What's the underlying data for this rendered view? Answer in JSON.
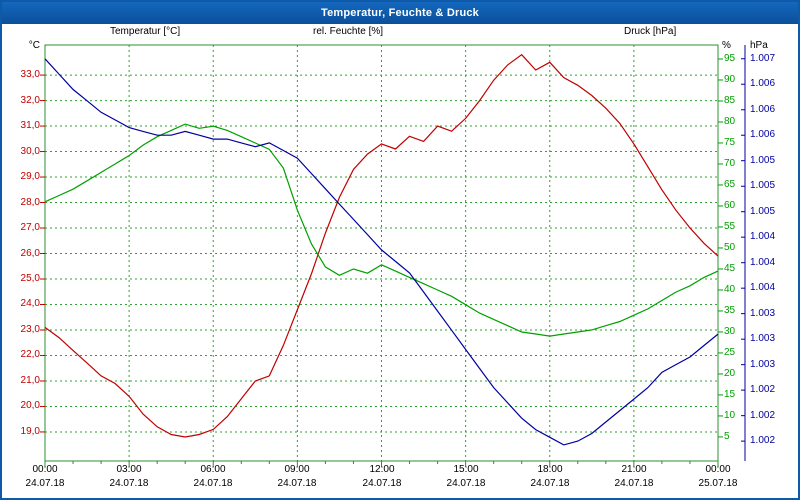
{
  "window": {
    "title": "Temperatur, Feuchte & Druck"
  },
  "legend": {
    "temperature": "Temperatur [°C]",
    "humidity": "rel. Feuchte [%]",
    "pressure": "Druck [hPa]"
  },
  "axis_units": {
    "left": "°C",
    "right_inner": "%",
    "right_outer": "hPa"
  },
  "colors": {
    "temperature": "#c00000",
    "humidity": "#00a000",
    "pressure": "#0000a0",
    "grid": "#2fa32f",
    "frame": "#2d8f2d",
    "time_text": "#000000",
    "titlebar": "#0e5aa8"
  },
  "chart_data": {
    "type": "line",
    "title": "Temperatur, Feuchte & Druck",
    "x_axis": {
      "span_hours": 24,
      "minor_tick_every_hours": 1,
      "major_ticks": [
        {
          "hour": 0,
          "time": "00:00",
          "date": "24.07.18"
        },
        {
          "hour": 3,
          "time": "03:00",
          "date": "24.07.18"
        },
        {
          "hour": 6,
          "time": "06:00",
          "date": "24.07.18"
        },
        {
          "hour": 9,
          "time": "09:00",
          "date": "24.07.18"
        },
        {
          "hour": 12,
          "time": "12:00",
          "date": "24.07.18"
        },
        {
          "hour": 15,
          "time": "15:00",
          "date": "24.07.18"
        },
        {
          "hour": 18,
          "time": "18:00",
          "date": "24.07.18"
        },
        {
          "hour": 21,
          "time": "21:00",
          "date": "24.07.18"
        },
        {
          "hour": 24,
          "time": "00:00",
          "date": "25.07.18"
        }
      ]
    },
    "axes": {
      "temperature": {
        "side": "left",
        "top": 34.18,
        "bottom": 17.86,
        "ticks": [
          [
            33,
            "33,0"
          ],
          [
            32,
            "32,0"
          ],
          [
            31,
            "31,0"
          ],
          [
            30,
            "30,0"
          ],
          [
            29,
            "29,0"
          ],
          [
            28,
            "28,0"
          ],
          [
            27,
            "27,0"
          ],
          [
            26,
            "26,0"
          ],
          [
            25,
            "25,0"
          ],
          [
            24,
            "24,0"
          ],
          [
            23,
            "23,0"
          ],
          [
            22,
            "22,0"
          ],
          [
            21,
            "21,0"
          ],
          [
            20,
            "20,0"
          ],
          [
            19,
            "19,0"
          ]
        ]
      },
      "humidity": {
        "side": "right",
        "top": 98.33,
        "bottom": -0.73,
        "ticks": [
          [
            95,
            "95"
          ],
          [
            90,
            "90"
          ],
          [
            85,
            "85"
          ],
          [
            80,
            "80"
          ],
          [
            75,
            "75"
          ],
          [
            70,
            "70"
          ],
          [
            65,
            "65"
          ],
          [
            60,
            "60"
          ],
          [
            55,
            "55"
          ],
          [
            50,
            "50"
          ],
          [
            45,
            "45"
          ],
          [
            40,
            "40"
          ],
          [
            35,
            "35"
          ],
          [
            30,
            "30"
          ],
          [
            25,
            "25"
          ],
          [
            20,
            "20"
          ],
          [
            15,
            "15"
          ],
          [
            10,
            "10"
          ],
          [
            5,
            "5"
          ]
        ]
      },
      "pressure": {
        "side": "far-right",
        "top": 1007.18,
        "bottom": 1001.74,
        "ticks": [
          [
            1007,
            "1.007"
          ],
          [
            1006.667,
            "1.006"
          ],
          [
            1006.333,
            "1.006"
          ],
          [
            1006,
            "1.006"
          ],
          [
            1005.667,
            "1.005"
          ],
          [
            1005.333,
            "1.005"
          ],
          [
            1005,
            "1.005"
          ],
          [
            1004.667,
            "1.004"
          ],
          [
            1004.333,
            "1.004"
          ],
          [
            1004,
            "1.004"
          ],
          [
            1003.667,
            "1.003"
          ],
          [
            1003.333,
            "1.003"
          ],
          [
            1003,
            "1.003"
          ],
          [
            1002.667,
            "1.002"
          ],
          [
            1002.333,
            "1.002"
          ],
          [
            1002,
            "1.002"
          ]
        ]
      }
    },
    "x_hours": [
      0,
      0.5,
      1,
      1.5,
      2,
      2.5,
      3,
      3.5,
      4,
      4.5,
      5,
      5.5,
      6,
      6.5,
      7,
      7.5,
      8,
      8.5,
      9,
      9.5,
      10,
      10.5,
      11,
      11.5,
      12,
      12.5,
      13,
      13.5,
      14,
      14.5,
      15,
      15.5,
      16,
      16.5,
      17,
      17.5,
      18,
      18.5,
      19,
      19.5,
      20,
      20.5,
      21,
      21.5,
      22,
      22.5,
      23,
      23.5,
      24
    ],
    "series": [
      {
        "name": "Temperatur [°C]",
        "axis": "temperature",
        "color_key": "temperature",
        "values": [
          23.1,
          22.7,
          22.2,
          21.7,
          21.2,
          20.9,
          20.4,
          19.7,
          19.2,
          18.9,
          18.8,
          18.9,
          19.1,
          19.6,
          20.3,
          21.0,
          21.2,
          22.4,
          23.8,
          25.2,
          26.8,
          28.2,
          29.3,
          29.9,
          30.3,
          30.1,
          30.6,
          30.4,
          31.0,
          30.8,
          31.3,
          32.0,
          32.8,
          33.4,
          33.8,
          33.2,
          33.5,
          32.9,
          32.6,
          32.2,
          31.7,
          31.1,
          30.3,
          29.4,
          28.5,
          27.7,
          27.0,
          26.4,
          25.9
        ]
      },
      {
        "name": "rel. Feuchte [%]",
        "axis": "humidity",
        "color_key": "humidity",
        "values": [
          61,
          62.5,
          64,
          66,
          68,
          70,
          72,
          74.5,
          76.5,
          78,
          79.5,
          78.5,
          79,
          78,
          76.5,
          75,
          73.5,
          69,
          59,
          51,
          45.5,
          43.5,
          45,
          44,
          46,
          44.5,
          43,
          41.5,
          40,
          38.5,
          36.5,
          34.5,
          33,
          31.5,
          30,
          29.5,
          29,
          29.5,
          30,
          30.5,
          31.5,
          32.5,
          34,
          35.5,
          37.5,
          39.5,
          41,
          43,
          44.5
        ]
      },
      {
        "name": "Druck [hPa]",
        "axis": "pressure",
        "color_key": "pressure",
        "values": [
          1007.0,
          1006.8,
          1006.6,
          1006.45,
          1006.3,
          1006.2,
          1006.1,
          1006.05,
          1006.0,
          1006.0,
          1006.05,
          1006.0,
          1005.95,
          1005.95,
          1005.9,
          1005.85,
          1005.9,
          1005.8,
          1005.7,
          1005.5,
          1005.3,
          1005.1,
          1004.9,
          1004.7,
          1004.5,
          1004.35,
          1004.2,
          1003.95,
          1003.7,
          1003.45,
          1003.2,
          1002.95,
          1002.7,
          1002.5,
          1002.3,
          1002.15,
          1002.05,
          1001.95,
          1002.0,
          1002.1,
          1002.25,
          1002.4,
          1002.55,
          1002.7,
          1002.9,
          1003.0,
          1003.1,
          1003.25,
          1003.4
        ]
      }
    ]
  }
}
